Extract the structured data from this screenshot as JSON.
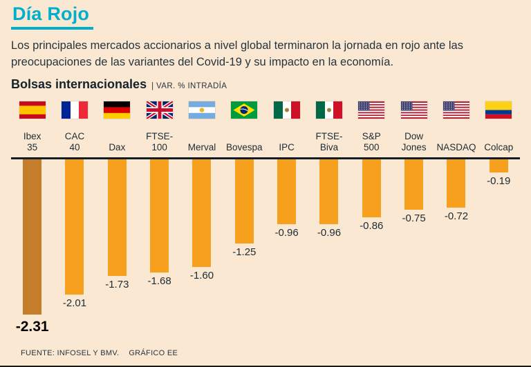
{
  "page": {
    "title": "Día Rojo",
    "intro": "Los principales mercados accionarios a nivel global terminaron la jornada en rojo ante las preocupaciones de las variantes del Covid-19 y su impacto en la economía.",
    "section_title": "Bolsas internacionales",
    "section_subtitle": "| VAR. % INTRADÍA",
    "source": "FUENTE: INFOSEL Y BMV.",
    "credit": "GRÁFICO EE"
  },
  "colors": {
    "accent": "#00AFCB",
    "background": "#FBE8D3",
    "bar": "#F6A01E",
    "bar_highlight": "#C47E2B",
    "baseline": "#101D26",
    "text": "#1C2B33"
  },
  "chart_data": {
    "type": "bar",
    "title": "Bolsas internacionales",
    "subtitle": "VAR. % INTRADÍA",
    "orientation": "vertical-down-from-zero-baseline",
    "categories": [
      "Ibex 35",
      "CAC 40",
      "Dax",
      "FTSE-100",
      "Merval",
      "Bovespa",
      "IPC",
      "FTSE-Biva",
      "S&P 500",
      "Dow Jones",
      "NASDAQ",
      "Colcap"
    ],
    "display_labels": [
      "Ibex\n35",
      "CAC\n40",
      "Dax",
      "FTSE-\n100",
      "Merval",
      "Bovespa",
      "IPC",
      "FTSE-\nBiva",
      "S&P\n500",
      "Dow\nJones",
      "NASDAQ",
      "Colcap"
    ],
    "values": [
      -2.31,
      -2.01,
      -1.73,
      -1.68,
      -1.6,
      -1.25,
      -0.96,
      -0.96,
      -0.86,
      -0.75,
      -0.72,
      -0.19
    ],
    "value_labels": [
      "-2.31",
      "-2.01",
      "-1.73",
      "-1.68",
      "-1.60",
      "-1.25",
      "-0.96",
      "-0.96",
      "-0.86",
      "-0.75",
      "-0.72",
      "-0.19"
    ],
    "flags": [
      "spain",
      "france",
      "germany",
      "uk",
      "argentina",
      "brazil",
      "mexico",
      "mexico",
      "usa",
      "usa",
      "usa",
      "colombia"
    ],
    "highlight_index": 0,
    "ylim": [
      -2.4,
      0
    ],
    "grid": false,
    "legend": false,
    "xlabel": "",
    "ylabel": ""
  }
}
